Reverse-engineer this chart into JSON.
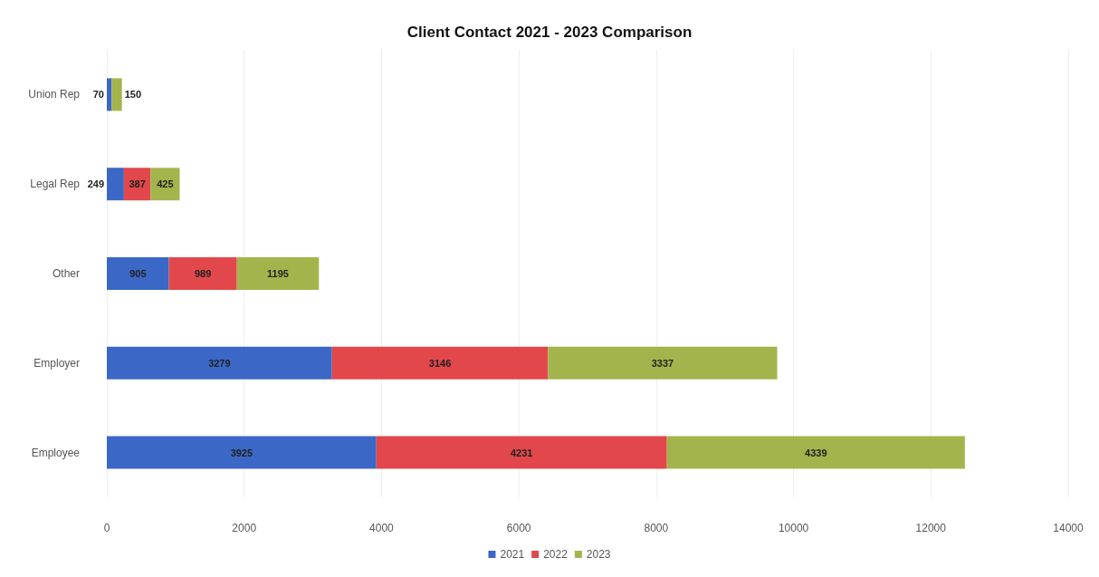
{
  "chart_data": {
    "type": "bar",
    "orientation": "horizontal",
    "stacked": true,
    "title": "Client Contact 2021 - 2023 Comparison",
    "categories": [
      "Union Rep",
      "Legal Rep",
      "Other",
      "Employer",
      "Employee"
    ],
    "series": [
      {
        "name": "2021",
        "color": "#3b67c6",
        "values": [
          70,
          249,
          905,
          3279,
          3925
        ]
      },
      {
        "name": "2022",
        "color": "#e2474b",
        "values": [
          null,
          387,
          989,
          3146,
          4231
        ]
      },
      {
        "name": "2023",
        "color": "#a4b44c",
        "values": [
          150,
          425,
          1195,
          3337,
          4339
        ]
      }
    ],
    "xlim": [
      0,
      14000
    ],
    "xticks": [
      0,
      2000,
      4000,
      6000,
      8000,
      10000,
      12000,
      14000
    ],
    "grid": "x",
    "legend": "bottom",
    "data_labels": true
  }
}
